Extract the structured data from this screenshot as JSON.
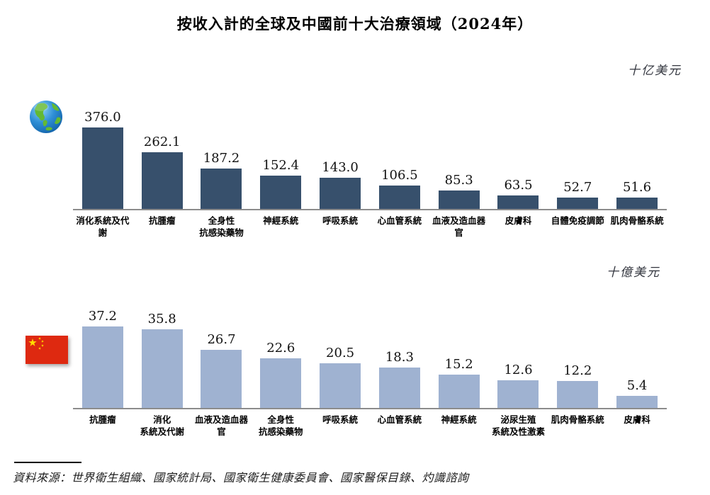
{
  "page": {
    "title": "按收入計的全球及中國前十大治療領域（2024年）",
    "source": "資料來源：世界衛生組織、國家統計局、國家衛生健康委員會、國家醫保目錄、灼識諮詢"
  },
  "chart_data": [
    {
      "type": "bar",
      "icon": "globe-icon",
      "unit_label": "十亿美元",
      "bar_color": "#37506c",
      "categories": [
        "消化系統及代謝",
        "抗腫瘤",
        "全身性\n抗感染藥物",
        "神經系統",
        "呼吸系統",
        "心血管系統",
        "血液及造血器官",
        "皮膚科",
        "自體免疫調節",
        "肌肉骨骼系統"
      ],
      "values": [
        376.0,
        262.1,
        187.2,
        152.4,
        143.0,
        106.5,
        85.3,
        63.5,
        52.7,
        51.6
      ],
      "value_labels": [
        "376.0",
        "262.1",
        "187.2",
        "152.4",
        "143.0",
        "106.5",
        "85.3",
        "63.5",
        "52.7",
        "51.6"
      ],
      "ylim": [
        0,
        400
      ],
      "grid": false,
      "axis": "x-only",
      "legend": "none"
    },
    {
      "type": "bar",
      "icon": "china-flag-icon",
      "unit_label": "十億美元",
      "bar_color": "#9fb2d1",
      "categories": [
        "抗腫瘤",
        "消化\n系統及代謝",
        "血液及造血器官",
        "全身性\n抗感染藥物",
        "呼吸系統",
        "心血管系統",
        "神經系統",
        "泌尿生殖\n系統及性激素",
        "肌肉骨骼系統",
        "皮膚科"
      ],
      "values": [
        37.2,
        35.8,
        26.7,
        22.6,
        20.5,
        18.3,
        15.2,
        12.6,
        12.2,
        5.4
      ],
      "value_labels": [
        "37.2",
        "35.8",
        "26.7",
        "22.6",
        "20.5",
        "18.3",
        "15.2",
        "12.6",
        "12.2",
        "5.4"
      ],
      "ylim": [
        0,
        40
      ],
      "grid": false,
      "axis": "x-only",
      "legend": "none"
    }
  ]
}
